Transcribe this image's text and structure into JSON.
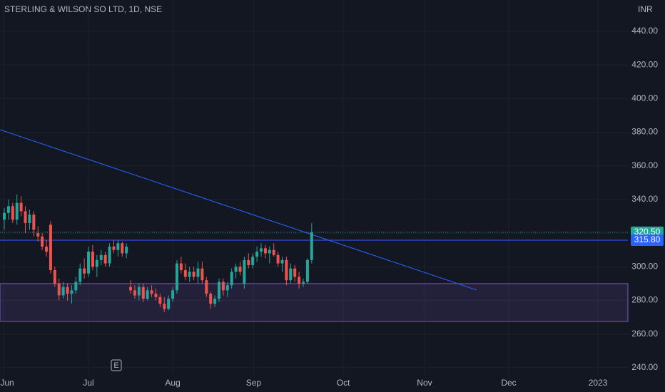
{
  "chart_data": {
    "type": "candlestick",
    "title": "STERLING & WILSON SO LTD, 1D, NSE",
    "currency": "INR",
    "up_color": "#26a69a",
    "down_color": "#ef5350",
    "grid": true,
    "x": [
      0,
      1,
      2,
      3,
      4,
      5,
      6,
      7,
      8,
      9,
      10,
      11,
      12,
      13,
      14,
      15,
      16,
      17,
      18,
      19,
      20,
      21,
      22,
      23,
      24,
      25,
      26,
      27,
      28,
      29,
      30,
      31,
      32,
      33,
      34,
      35,
      36,
      37,
      38,
      39,
      40,
      41,
      42,
      43,
      44,
      45,
      46,
      47,
      48,
      49,
      50,
      51,
      52,
      53,
      54,
      55,
      56,
      57,
      58,
      59,
      60,
      61,
      62,
      63,
      64,
      65,
      66,
      67,
      68,
      69,
      70,
      71,
      72,
      73
    ],
    "open": [
      328,
      332,
      336,
      328,
      338,
      333,
      326,
      331,
      320,
      318,
      312,
      325,
      298,
      290,
      283,
      288,
      284,
      286,
      291,
      299,
      296,
      309,
      300,
      304,
      307,
      302,
      312,
      310,
      314,
      308,
      288,
      286,
      283,
      288,
      281,
      286,
      284,
      282,
      278,
      275,
      281,
      286,
      302,
      298,
      294,
      297,
      294,
      299,
      292,
      284,
      278,
      281,
      291,
      286,
      289,
      297,
      300,
      290,
      304,
      301,
      306,
      309,
      311,
      308,
      310,
      307,
      302,
      304,
      292,
      299,
      294,
      290,
      291,
      304
    ],
    "high": [
      335,
      340,
      338,
      343,
      342,
      336,
      334,
      333,
      324,
      320,
      316,
      327,
      300,
      293,
      291,
      290,
      289,
      294,
      302,
      305,
      312,
      313,
      307,
      310,
      309,
      314,
      316,
      316,
      315,
      314,
      292,
      289,
      290,
      290,
      288,
      289,
      287,
      284,
      282,
      283,
      288,
      304,
      306,
      302,
      300,
      300,
      303,
      303,
      294,
      285,
      283,
      293,
      293,
      291,
      299,
      302,
      303,
      306,
      308,
      308,
      312,
      314,
      313,
      312,
      314,
      309,
      306,
      306,
      302,
      301,
      297,
      293,
      305,
      326
    ],
    "low": [
      322,
      328,
      326,
      325,
      330,
      320,
      322,
      318,
      315,
      310,
      306,
      296,
      288,
      280,
      281,
      280,
      278,
      284,
      289,
      293,
      294,
      298,
      294,
      301,
      300,
      300,
      308,
      306,
      306,
      305,
      284,
      281,
      280,
      279,
      280,
      282,
      280,
      276,
      273,
      274,
      279,
      284,
      296,
      292,
      291,
      292,
      290,
      290,
      282,
      275,
      276,
      279,
      283,
      282,
      287,
      293,
      295,
      287,
      299,
      299,
      303,
      306,
      305,
      302,
      306,
      300,
      297,
      289,
      290,
      291,
      287,
      288,
      290,
      302
    ],
    "close": [
      332,
      336,
      328,
      338,
      333,
      326,
      331,
      322,
      318,
      312,
      309,
      298,
      290,
      283,
      288,
      284,
      286,
      291,
      299,
      296,
      309,
      300,
      304,
      307,
      302,
      312,
      310,
      314,
      308,
      312,
      286,
      283,
      288,
      281,
      286,
      284,
      282,
      278,
      275,
      281,
      286,
      302,
      298,
      294,
      297,
      294,
      299,
      292,
      284,
      278,
      281,
      291,
      286,
      289,
      297,
      300,
      297,
      304,
      301,
      306,
      309,
      311,
      308,
      310,
      307,
      302,
      304,
      292,
      299,
      294,
      290,
      291,
      304,
      320.5
    ],
    "xlim": [
      -1.02,
      148.1
    ],
    "xticks": [
      {
        "value": -0.17,
        "label": "Jun"
      },
      {
        "value": 20,
        "label": "Jul"
      },
      {
        "value": 40,
        "label": "Aug"
      },
      {
        "value": 59.2,
        "label": "Sep"
      },
      {
        "value": 80.5,
        "label": "Oct"
      },
      {
        "value": 99.8,
        "label": "Nov"
      },
      {
        "value": 119.8,
        "label": "Dec"
      },
      {
        "value": 141,
        "label": "2023"
      }
    ],
    "ylim": [
      235.3,
      458.6
    ],
    "yticks": [
      {
        "value": 240,
        "label": "240.00"
      },
      {
        "value": 260,
        "label": "260.00"
      },
      {
        "value": 280,
        "label": "280.00"
      },
      {
        "value": 300,
        "label": "300.00"
      },
      {
        "value": 320,
        "label": "320.00"
      },
      {
        "value": 340,
        "label": "340.00"
      },
      {
        "value": 360,
        "label": "360.00"
      },
      {
        "value": 380,
        "label": "380.00"
      },
      {
        "value": 400,
        "label": "400.00"
      },
      {
        "value": 420,
        "label": "420.00"
      },
      {
        "value": 440,
        "label": "440.00"
      }
    ],
    "last_price": {
      "value": 320.5,
      "label": "320.50",
      "color": "#26a69a"
    },
    "level": {
      "value": 315.8,
      "label": "315.80",
      "color": "#2962ff"
    },
    "zone": {
      "low": 267.5,
      "high": 290,
      "color": "#7e57c2"
    },
    "trendline": {
      "x": [
        -1.02,
        112.2
      ],
      "y": [
        381.5,
        286.2
      ],
      "color": "#2962ff"
    },
    "events": [
      {
        "x": 26.6,
        "label": "E"
      }
    ]
  }
}
